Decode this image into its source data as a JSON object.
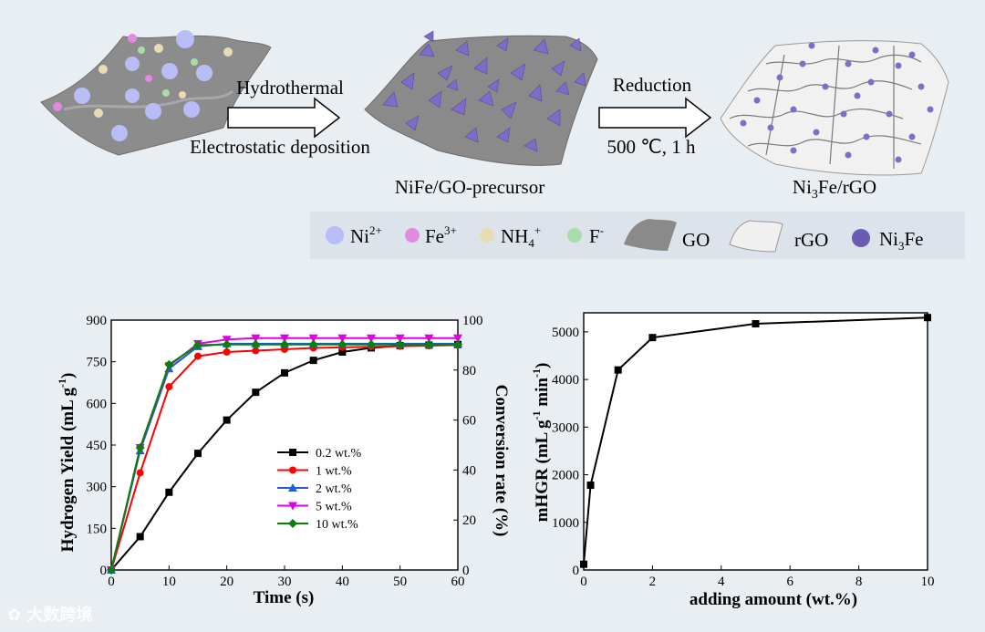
{
  "scheme": {
    "step1_top": "Hydrothermal",
    "step1_bottom": "Electrostatic deposition",
    "step2_top": "Reduction",
    "step2_bottom": "500 ℃, 1 h",
    "product1": "NiFe/GO-precursor",
    "product2": "Ni3Fe/rGO",
    "legend": [
      {
        "label": "Ni2+",
        "color": "#b8bdf5",
        "kind": "ball"
      },
      {
        "label": "Fe3+",
        "color": "#e08be0",
        "kind": "ball"
      },
      {
        "label": "NH4+",
        "color": "#e8dcb5",
        "kind": "ball"
      },
      {
        "label": "F-",
        "color": "#a8dca8",
        "kind": "ball"
      },
      {
        "label": "GO",
        "color": "#8a8a8a",
        "kind": "sheet"
      },
      {
        "label": "rGO",
        "color": "#e0e0e0",
        "kind": "sheet"
      },
      {
        "label": "Ni3Fe",
        "color": "#6a5cb5",
        "kind": "ball"
      }
    ]
  },
  "chart_data": [
    {
      "type": "line",
      "xlabel": "Time (s)",
      "ylabel": "Hydrogen Yield (mL g-1)",
      "y2label": "Conversion rate (%)",
      "xlim": [
        0,
        60
      ],
      "ylim": [
        0,
        900
      ],
      "y2lim": [
        0,
        100
      ],
      "xticks": [
        0,
        10,
        20,
        30,
        40,
        50,
        60
      ],
      "yticks": [
        0,
        150,
        300,
        450,
        600,
        750,
        900
      ],
      "y2ticks": [
        0,
        20,
        40,
        60,
        80,
        100
      ],
      "legend_position": "center-right",
      "series": [
        {
          "name": "0.2 wt.%",
          "color": "#000000",
          "marker": "square",
          "x": [
            0,
            5,
            10,
            15,
            20,
            25,
            30,
            35,
            40,
            45,
            50,
            55,
            60
          ],
          "y": [
            0,
            120,
            280,
            420,
            540,
            640,
            710,
            755,
            785,
            800,
            808,
            810,
            812
          ]
        },
        {
          "name": "1 wt.%",
          "color": "#ff0000",
          "marker": "circle",
          "x": [
            0,
            5,
            10,
            15,
            20,
            25,
            30,
            35,
            40,
            45,
            50,
            55,
            60
          ],
          "y": [
            0,
            350,
            660,
            770,
            785,
            790,
            795,
            800,
            802,
            804,
            806,
            808,
            810
          ]
        },
        {
          "name": "2 wt.%",
          "color": "#1e5fd8",
          "marker": "triangle-up",
          "x": [
            0,
            5,
            10,
            15,
            20,
            25,
            30,
            35,
            40,
            45,
            50,
            55,
            60
          ],
          "y": [
            0,
            430,
            725,
            805,
            815,
            815,
            815,
            815,
            815,
            815,
            815,
            815,
            815
          ]
        },
        {
          "name": "5 wt.%",
          "color": "#e000e0",
          "marker": "triangle-down",
          "x": [
            0,
            5,
            10,
            15,
            20,
            25,
            30,
            35,
            40,
            45,
            50,
            55,
            60
          ],
          "y": [
            0,
            440,
            735,
            815,
            830,
            835,
            835,
            835,
            835,
            835,
            835,
            835,
            835
          ]
        },
        {
          "name": "10 wt.%",
          "color": "#0a7f0a",
          "marker": "diamond",
          "x": [
            0,
            5,
            10,
            15,
            20,
            25,
            30,
            35,
            40,
            45,
            50,
            55,
            60
          ],
          "y": [
            0,
            440,
            740,
            810,
            812,
            812,
            812,
            812,
            812,
            812,
            812,
            812,
            812
          ]
        }
      ]
    },
    {
      "type": "line",
      "xlabel": "adding amount (wt.%)",
      "ylabel": "mHGR (mL g-1 min-1)",
      "xlim": [
        0,
        10
      ],
      "ylim": [
        0,
        5400
      ],
      "xticks": [
        0,
        2,
        4,
        6,
        8,
        10
      ],
      "yticks": [
        0,
        1000,
        2000,
        3000,
        4000,
        5000
      ],
      "series": [
        {
          "color": "#000000",
          "marker": "square",
          "x": [
            0,
            0.2,
            1,
            2,
            5,
            10
          ],
          "y": [
            120,
            1780,
            4200,
            4880,
            5170,
            5300
          ]
        }
      ]
    }
  ],
  "watermark": "大数跨境"
}
